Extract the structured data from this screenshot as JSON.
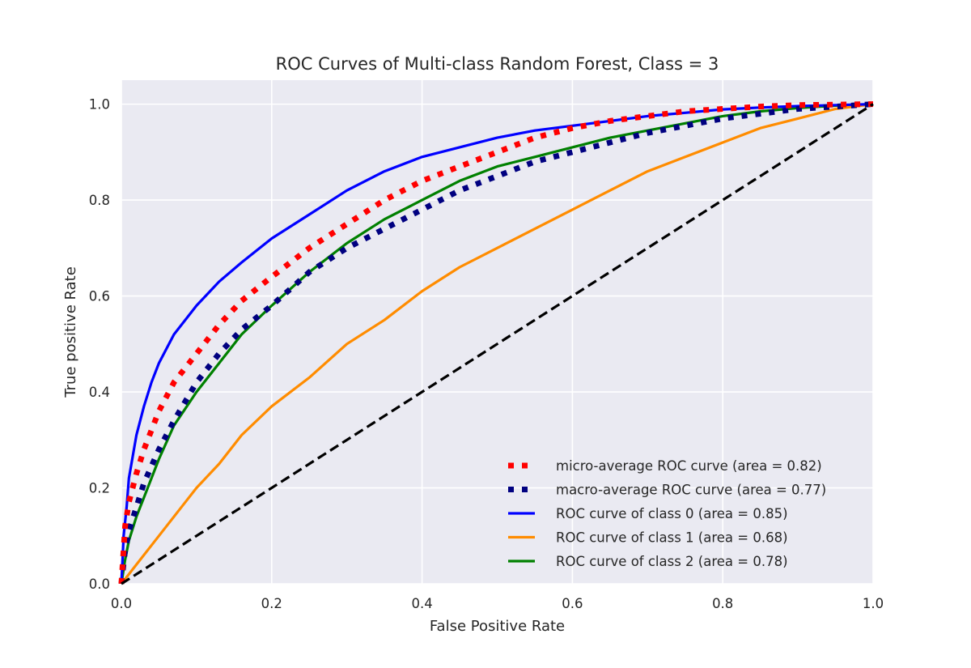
{
  "chart_data": {
    "type": "line",
    "title": "ROC Curves of Multi-class Random Forest, Class = 3",
    "xlabel": "False Positive Rate",
    "ylabel": "True positive Rate",
    "xlim": [
      0.0,
      1.0
    ],
    "ylim": [
      0.0,
      1.05
    ],
    "x_ticks": [
      "0.0",
      "0.2",
      "0.4",
      "0.6",
      "0.8",
      "1.0"
    ],
    "y_ticks": [
      "0.0",
      "0.2",
      "0.4",
      "0.6",
      "0.8",
      "1.0"
    ],
    "grid": true,
    "legend_position": "lower-right",
    "series": [
      {
        "name": "micro-average ROC curve (area = 0.82)",
        "color": "#ff0000",
        "style": "dotted",
        "x": [
          0.0,
          0.005,
          0.01,
          0.02,
          0.03,
          0.05,
          0.07,
          0.1,
          0.13,
          0.16,
          0.2,
          0.25,
          0.3,
          0.35,
          0.4,
          0.45,
          0.5,
          0.55,
          0.6,
          0.65,
          0.7,
          0.75,
          0.8,
          0.85,
          0.9,
          0.95,
          1.0
        ],
        "y": [
          0.0,
          0.12,
          0.17,
          0.23,
          0.28,
          0.36,
          0.42,
          0.48,
          0.54,
          0.59,
          0.64,
          0.7,
          0.75,
          0.8,
          0.84,
          0.87,
          0.9,
          0.93,
          0.95,
          0.965,
          0.975,
          0.985,
          0.99,
          0.995,
          0.998,
          0.999,
          1.0
        ]
      },
      {
        "name": "macro-average ROC curve (area = 0.77)",
        "color": "#000080",
        "style": "dotted",
        "x": [
          0.0,
          0.005,
          0.01,
          0.02,
          0.03,
          0.05,
          0.07,
          0.1,
          0.13,
          0.16,
          0.2,
          0.25,
          0.3,
          0.35,
          0.4,
          0.45,
          0.5,
          0.55,
          0.6,
          0.65,
          0.7,
          0.75,
          0.8,
          0.85,
          0.9,
          0.95,
          1.0
        ],
        "y": [
          0.0,
          0.07,
          0.11,
          0.16,
          0.21,
          0.28,
          0.34,
          0.42,
          0.48,
          0.53,
          0.58,
          0.65,
          0.7,
          0.74,
          0.78,
          0.82,
          0.85,
          0.88,
          0.9,
          0.92,
          0.94,
          0.955,
          0.97,
          0.98,
          0.99,
          0.995,
          1.0
        ]
      },
      {
        "name": "ROC curve of class 0 (area = 0.85)",
        "color": "#0000ff",
        "style": "solid",
        "x": [
          0.0,
          0.003,
          0.007,
          0.01,
          0.02,
          0.03,
          0.04,
          0.05,
          0.07,
          0.1,
          0.13,
          0.16,
          0.2,
          0.25,
          0.3,
          0.35,
          0.4,
          0.45,
          0.5,
          0.55,
          0.6,
          0.65,
          0.7,
          0.75,
          0.8,
          0.85,
          0.9,
          0.95,
          1.0
        ],
        "y": [
          0.0,
          0.1,
          0.16,
          0.22,
          0.31,
          0.37,
          0.42,
          0.46,
          0.52,
          0.58,
          0.63,
          0.67,
          0.72,
          0.77,
          0.82,
          0.86,
          0.89,
          0.91,
          0.93,
          0.945,
          0.955,
          0.965,
          0.975,
          0.982,
          0.989,
          0.993,
          0.996,
          0.998,
          1.0
        ]
      },
      {
        "name": "ROC curve of class 1 (area = 0.68)",
        "color": "#ff8c00",
        "style": "solid",
        "x": [
          0.0,
          0.02,
          0.05,
          0.08,
          0.1,
          0.13,
          0.16,
          0.2,
          0.25,
          0.3,
          0.35,
          0.4,
          0.45,
          0.5,
          0.55,
          0.6,
          0.65,
          0.7,
          0.75,
          0.8,
          0.85,
          0.9,
          0.95,
          1.0
        ],
        "y": [
          0.0,
          0.04,
          0.1,
          0.16,
          0.2,
          0.25,
          0.31,
          0.37,
          0.43,
          0.5,
          0.55,
          0.61,
          0.66,
          0.7,
          0.74,
          0.78,
          0.82,
          0.86,
          0.89,
          0.92,
          0.95,
          0.97,
          0.99,
          1.0
        ]
      },
      {
        "name": "ROC curve of class 2 (area = 0.78)",
        "color": "#008000",
        "style": "solid",
        "x": [
          0.0,
          0.005,
          0.01,
          0.02,
          0.03,
          0.05,
          0.07,
          0.1,
          0.13,
          0.16,
          0.2,
          0.25,
          0.3,
          0.35,
          0.4,
          0.45,
          0.5,
          0.55,
          0.6,
          0.65,
          0.7,
          0.75,
          0.8,
          0.85,
          0.9,
          0.95,
          1.0
        ],
        "y": [
          0.0,
          0.05,
          0.09,
          0.14,
          0.18,
          0.26,
          0.33,
          0.4,
          0.46,
          0.52,
          0.58,
          0.65,
          0.71,
          0.76,
          0.8,
          0.84,
          0.87,
          0.89,
          0.91,
          0.93,
          0.945,
          0.96,
          0.975,
          0.985,
          0.992,
          0.997,
          1.0
        ]
      },
      {
        "name": "",
        "color": "#000000",
        "style": "dashed",
        "x": [
          0.0,
          1.0
        ],
        "y": [
          0.0,
          1.0
        ]
      }
    ]
  }
}
